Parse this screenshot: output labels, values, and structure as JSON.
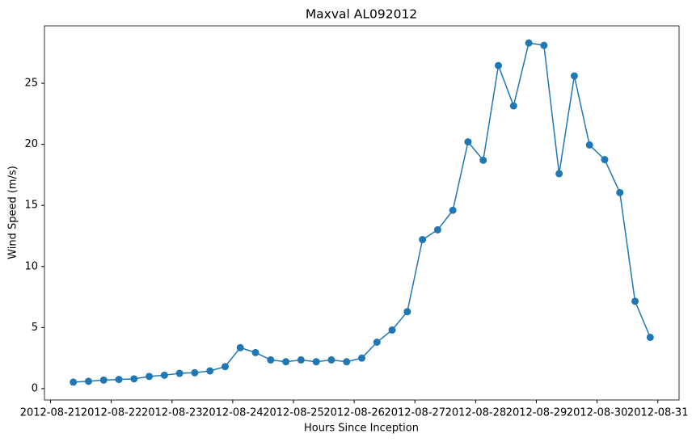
{
  "chart_data": {
    "type": "line",
    "title": "Maxval AL092012",
    "x_label": "Hours Since Inception",
    "y_label": "Wind Speed (m/s)",
    "x": [
      "2012-08-21 09:00",
      "2012-08-21 15:00",
      "2012-08-21 21:00",
      "2012-08-22 03:00",
      "2012-08-22 09:00",
      "2012-08-22 15:00",
      "2012-08-22 21:00",
      "2012-08-23 03:00",
      "2012-08-23 09:00",
      "2012-08-23 15:00",
      "2012-08-23 21:00",
      "2012-08-24 03:00",
      "2012-08-24 09:00",
      "2012-08-24 15:00",
      "2012-08-24 21:00",
      "2012-08-25 03:00",
      "2012-08-25 09:00",
      "2012-08-25 15:00",
      "2012-08-25 21:00",
      "2012-08-26 03:00",
      "2012-08-26 09:00",
      "2012-08-26 15:00",
      "2012-08-26 21:00",
      "2012-08-27 03:00",
      "2012-08-27 09:00",
      "2012-08-27 15:00",
      "2012-08-27 21:00",
      "2012-08-28 03:00",
      "2012-08-28 09:00",
      "2012-08-28 15:00",
      "2012-08-28 21:00",
      "2012-08-29 03:00",
      "2012-08-29 09:00",
      "2012-08-29 15:00",
      "2012-08-29 21:00",
      "2012-08-30 03:00",
      "2012-08-30 09:00",
      "2012-08-30 15:00",
      "2012-08-30 21:00"
    ],
    "series": [
      {
        "name": "Maxval",
        "color": "#1f77b4",
        "values": [
          0.53,
          0.6,
          0.7,
          0.75,
          0.8,
          1.0,
          1.1,
          1.25,
          1.3,
          1.45,
          1.8,
          3.35,
          2.95,
          2.35,
          2.2,
          2.35,
          2.2,
          2.35,
          2.2,
          2.5,
          3.8,
          4.8,
          6.3,
          12.2,
          13.0,
          14.6,
          20.2,
          18.7,
          26.45,
          23.15,
          28.3,
          28.1,
          17.6,
          25.6,
          19.95,
          18.75,
          16.05,
          7.15,
          4.2
        ]
      }
    ],
    "xlim": [
      "2012-08-20 21:36",
      "2012-08-31 08:24"
    ],
    "xticks": [
      "2012-08-21",
      "2012-08-22",
      "2012-08-23",
      "2012-08-24",
      "2012-08-25",
      "2012-08-26",
      "2012-08-27",
      "2012-08-28",
      "2012-08-29",
      "2012-08-30",
      "2012-08-31"
    ],
    "ylim": [
      -0.93,
      29.7
    ],
    "yticks": [
      0,
      5,
      10,
      15,
      20,
      25
    ],
    "grid": false
  }
}
